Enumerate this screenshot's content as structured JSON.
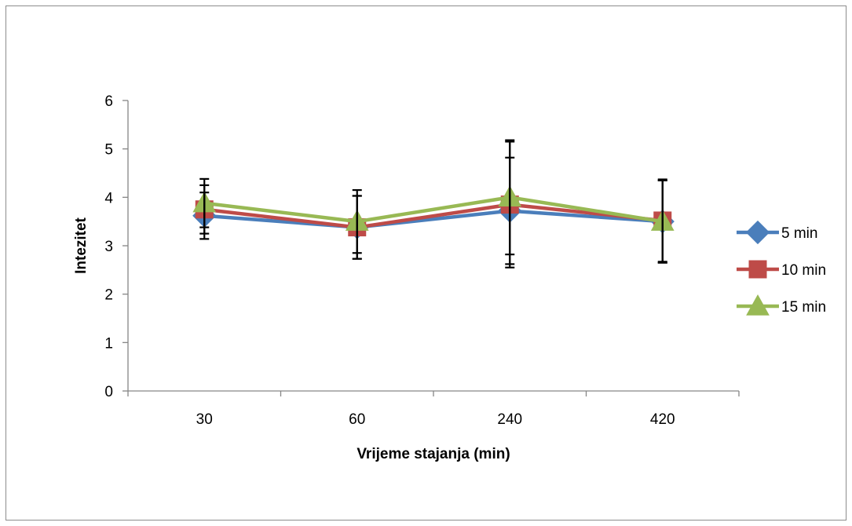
{
  "chart_data": {
    "type": "line",
    "title": "",
    "xlabel": "Vrijeme stajanja (min)",
    "ylabel": "Intezitet",
    "categories": [
      "30",
      "60",
      "240",
      "420"
    ],
    "ylim": [
      0,
      6
    ],
    "yticks": [
      "0",
      "1",
      "2",
      "3",
      "4",
      "5",
      "6"
    ],
    "grid": false,
    "legend_position": "right",
    "error_bars": true,
    "series": [
      {
        "name": "5 min",
        "color": "#4a7ebb",
        "marker": "diamond",
        "values": [
          3.62,
          3.38,
          3.72,
          3.5
        ],
        "error": [
          0.48,
          0.65,
          1.1,
          0.85
        ]
      },
      {
        "name": "10 min",
        "color": "#be4b48",
        "marker": "square",
        "values": [
          3.75,
          3.38,
          3.85,
          3.52
        ],
        "error": [
          0.5,
          0.65,
          1.3,
          0.85
        ]
      },
      {
        "name": "15 min",
        "color": "#98b954",
        "marker": "triangle",
        "values": [
          3.88,
          3.5,
          4.0,
          3.5
        ],
        "error": [
          0.5,
          0.65,
          1.18,
          0.85
        ]
      }
    ]
  }
}
